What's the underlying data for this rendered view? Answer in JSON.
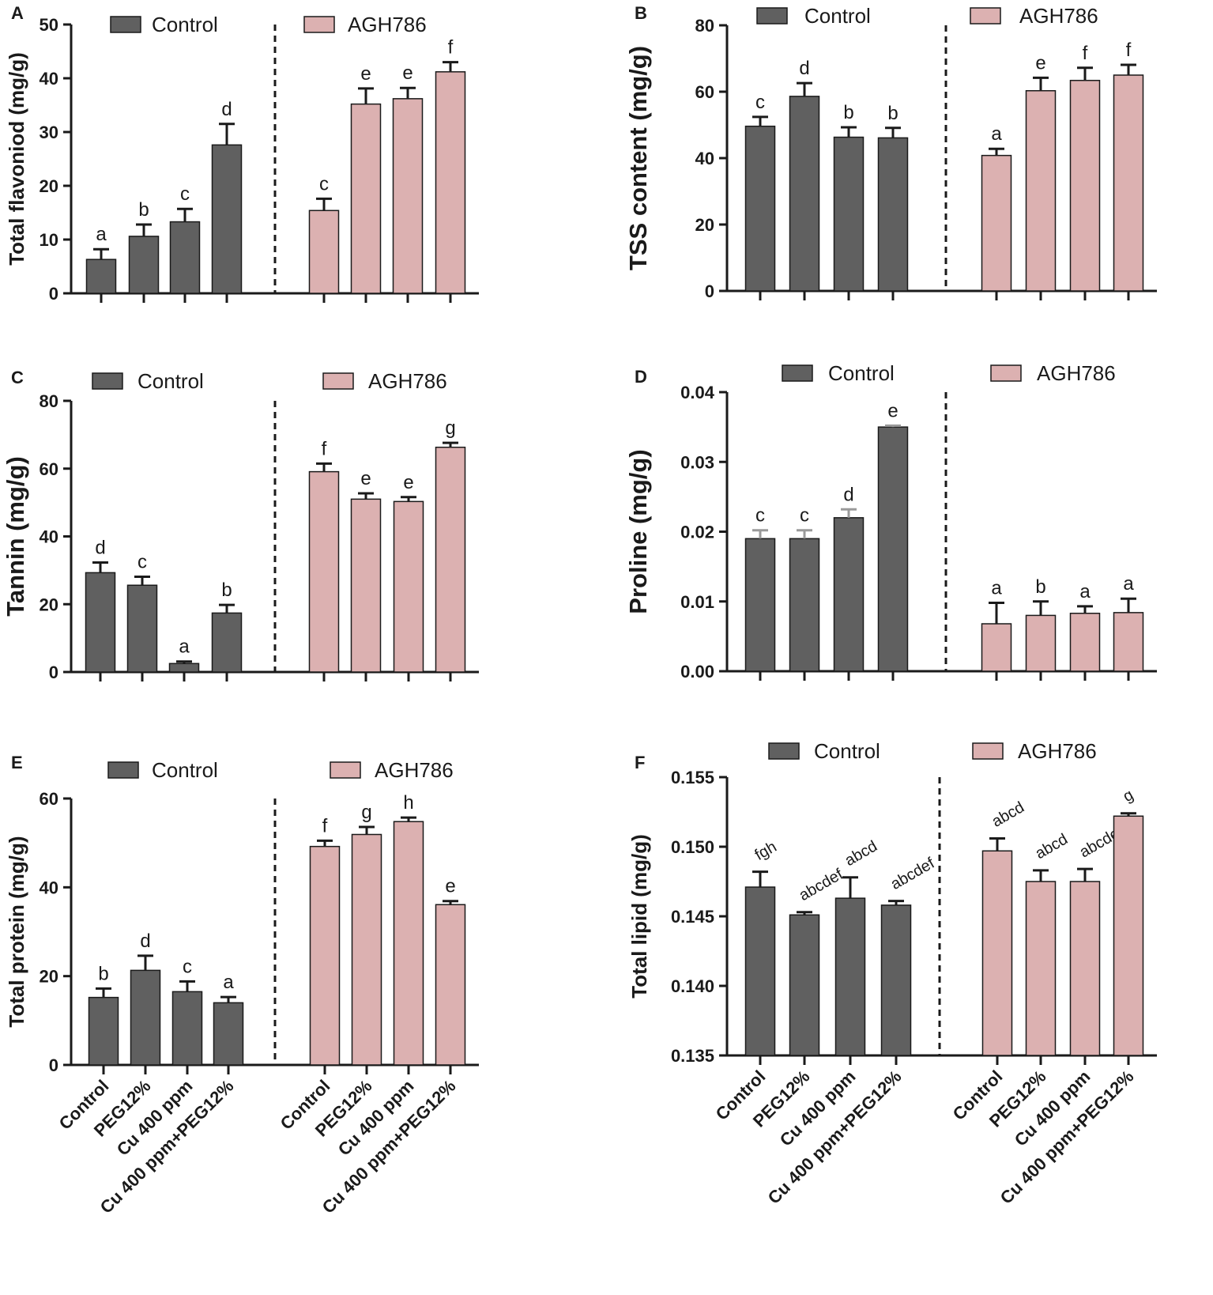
{
  "colors": {
    "control": "#606060",
    "agh786": "#dcb1b1",
    "axis": "#1a1a1a"
  },
  "legend": {
    "control": "Control",
    "agh786": "AGH786"
  },
  "treatments": [
    "Control",
    "PEG12%",
    "Cu 400 ppm",
    "Cu 400 ppm+PEG12%"
  ],
  "chart_data": [
    {
      "panel": "A",
      "type": "bar",
      "ylabel": "Total flavoniod (mg/g)",
      "ylabel_bold": true,
      "ylim": [
        0,
        50
      ],
      "yticks": [
        "0",
        "10",
        "20",
        "30",
        "40",
        "50"
      ],
      "groups": [
        "Control",
        "AGH786"
      ],
      "categories": [
        "Control",
        "PEG12%",
        "Cu 400 ppm",
        "Cu 400 ppm+PEG12%"
      ],
      "series": [
        {
          "name": "Control",
          "values": [
            6.3,
            10.6,
            13.3,
            27.6
          ],
          "errors": [
            1.9,
            2.2,
            2.4,
            3.9
          ],
          "letters": [
            "a",
            "b",
            "c",
            "d"
          ]
        },
        {
          "name": "AGH786",
          "values": [
            15.4,
            35.2,
            36.2,
            41.2
          ],
          "errors": [
            2.2,
            2.9,
            2.0,
            1.8
          ],
          "letters": [
            "c",
            "e",
            "e",
            "f"
          ]
        }
      ]
    },
    {
      "panel": "B",
      "type": "bar",
      "ylabel": "TSS content (mg/g)",
      "ylabel_bold": true,
      "ylim": [
        0,
        80
      ],
      "yticks": [
        "0",
        "20",
        "40",
        "60",
        "80"
      ],
      "groups": [
        "Control",
        "AGH786"
      ],
      "categories": [
        "Control",
        "PEG12%",
        "Cu 400 ppm",
        "Cu 400 ppm+PEG12%"
      ],
      "series": [
        {
          "name": "Control",
          "values": [
            49.6,
            58.6,
            46.3,
            46.1
          ],
          "errors": [
            2.8,
            4.0,
            3.0,
            3.0
          ],
          "letters": [
            "c",
            "d",
            "b",
            "b"
          ]
        },
        {
          "name": "AGH786",
          "values": [
            40.8,
            60.3,
            63.4,
            65.0
          ],
          "errors": [
            2.0,
            3.9,
            3.8,
            3.1
          ],
          "letters": [
            "a",
            "e",
            "f",
            "f"
          ]
        }
      ]
    },
    {
      "panel": "C",
      "type": "bar",
      "ylabel": "Tannin (mg/g)",
      "ylabel_bold": true,
      "ylim": [
        0,
        80
      ],
      "yticks": [
        "0",
        "20",
        "40",
        "60",
        "80"
      ],
      "groups": [
        "Control",
        "AGH786"
      ],
      "categories": [
        "Control",
        "PEG12%",
        "Cu 400 ppm",
        "Cu 400 ppm+PEG12%"
      ],
      "series": [
        {
          "name": "Control",
          "values": [
            29.3,
            25.6,
            2.5,
            17.4
          ],
          "errors": [
            3.0,
            2.5,
            0.6,
            2.4
          ],
          "letters": [
            "d",
            "c",
            "a",
            "b"
          ]
        },
        {
          "name": "AGH786",
          "values": [
            59.1,
            51.0,
            50.3,
            66.3
          ],
          "errors": [
            2.4,
            1.7,
            1.3,
            1.3
          ],
          "letters": [
            "f",
            "e",
            "e",
            "g"
          ]
        }
      ]
    },
    {
      "panel": "D",
      "type": "bar",
      "ylabel": "Proline (mg/g)",
      "ylabel_bold": true,
      "ylim": [
        0,
        0.04
      ],
      "yticks": [
        "0.00",
        "0.01",
        "0.02",
        "0.03",
        "0.04"
      ],
      "groups": [
        "Control",
        "AGH786"
      ],
      "categories": [
        "Control",
        "PEG12%",
        "Cu 400 ppm",
        "Cu 400 ppm+PEG12%"
      ],
      "series": [
        {
          "name": "Control",
          "values": [
            0.019,
            0.019,
            0.022,
            0.035
          ],
          "errors": [
            0.0012,
            0.0012,
            0.0012,
            0.0002
          ],
          "letters": [
            "c",
            "c",
            "d",
            "e"
          ]
        },
        {
          "name": "AGH786",
          "values": [
            0.0068,
            0.008,
            0.0083,
            0.0084
          ],
          "errors": [
            0.003,
            0.002,
            0.001,
            0.002
          ],
          "letters": [
            "a",
            "b",
            "a",
            "a"
          ]
        }
      ]
    },
    {
      "panel": "E",
      "type": "bar",
      "ylabel": "Total protein (mg/g)",
      "ylabel_bold": true,
      "ylim": [
        0,
        60
      ],
      "yticks": [
        "0",
        "20",
        "40",
        "60"
      ],
      "groups": [
        "Control",
        "AGH786"
      ],
      "categories": [
        "Control",
        "PEG12%",
        "Cu 400 ppm",
        "Cu 400 ppm+PEG12%"
      ],
      "series": [
        {
          "name": "Control",
          "values": [
            15.2,
            21.3,
            16.5,
            14.0
          ],
          "errors": [
            2.0,
            3.3,
            2.3,
            1.3
          ],
          "letters": [
            "b",
            "d",
            "c",
            "a"
          ]
        },
        {
          "name": "AGH786",
          "values": [
            49.2,
            51.9,
            54.8,
            36.1
          ],
          "errors": [
            1.3,
            1.7,
            0.9,
            0.8
          ],
          "letters": [
            "f",
            "g",
            "h",
            "e"
          ]
        }
      ]
    },
    {
      "panel": "F",
      "type": "bar",
      "ylabel": "Total lipid (mg/g)",
      "ylabel_bold": true,
      "ylim": [
        0.135,
        0.155
      ],
      "yticks": [
        "0.135",
        "0.140",
        "0.145",
        "0.150",
        "0.155"
      ],
      "groups": [
        "Control",
        "AGH786"
      ],
      "categories": [
        "Control",
        "PEG12%",
        "Cu 400 ppm",
        "Cu 400 ppm+PEG12%"
      ],
      "series": [
        {
          "name": "Control",
          "values": [
            0.1471,
            0.1451,
            0.1463,
            0.1458
          ],
          "errors": [
            0.0011,
            0.0002,
            0.0015,
            0.0003
          ],
          "letters": [
            "fgh",
            "abcdef",
            "abcd",
            "abcdef"
          ]
        },
        {
          "name": "AGH786",
          "values": [
            0.1497,
            0.1475,
            0.1475,
            0.1522
          ],
          "errors": [
            0.0009,
            0.0008,
            0.0009,
            0.0002
          ],
          "letters": [
            "abcd",
            "abcd",
            "abcdef",
            "g"
          ]
        }
      ]
    }
  ]
}
